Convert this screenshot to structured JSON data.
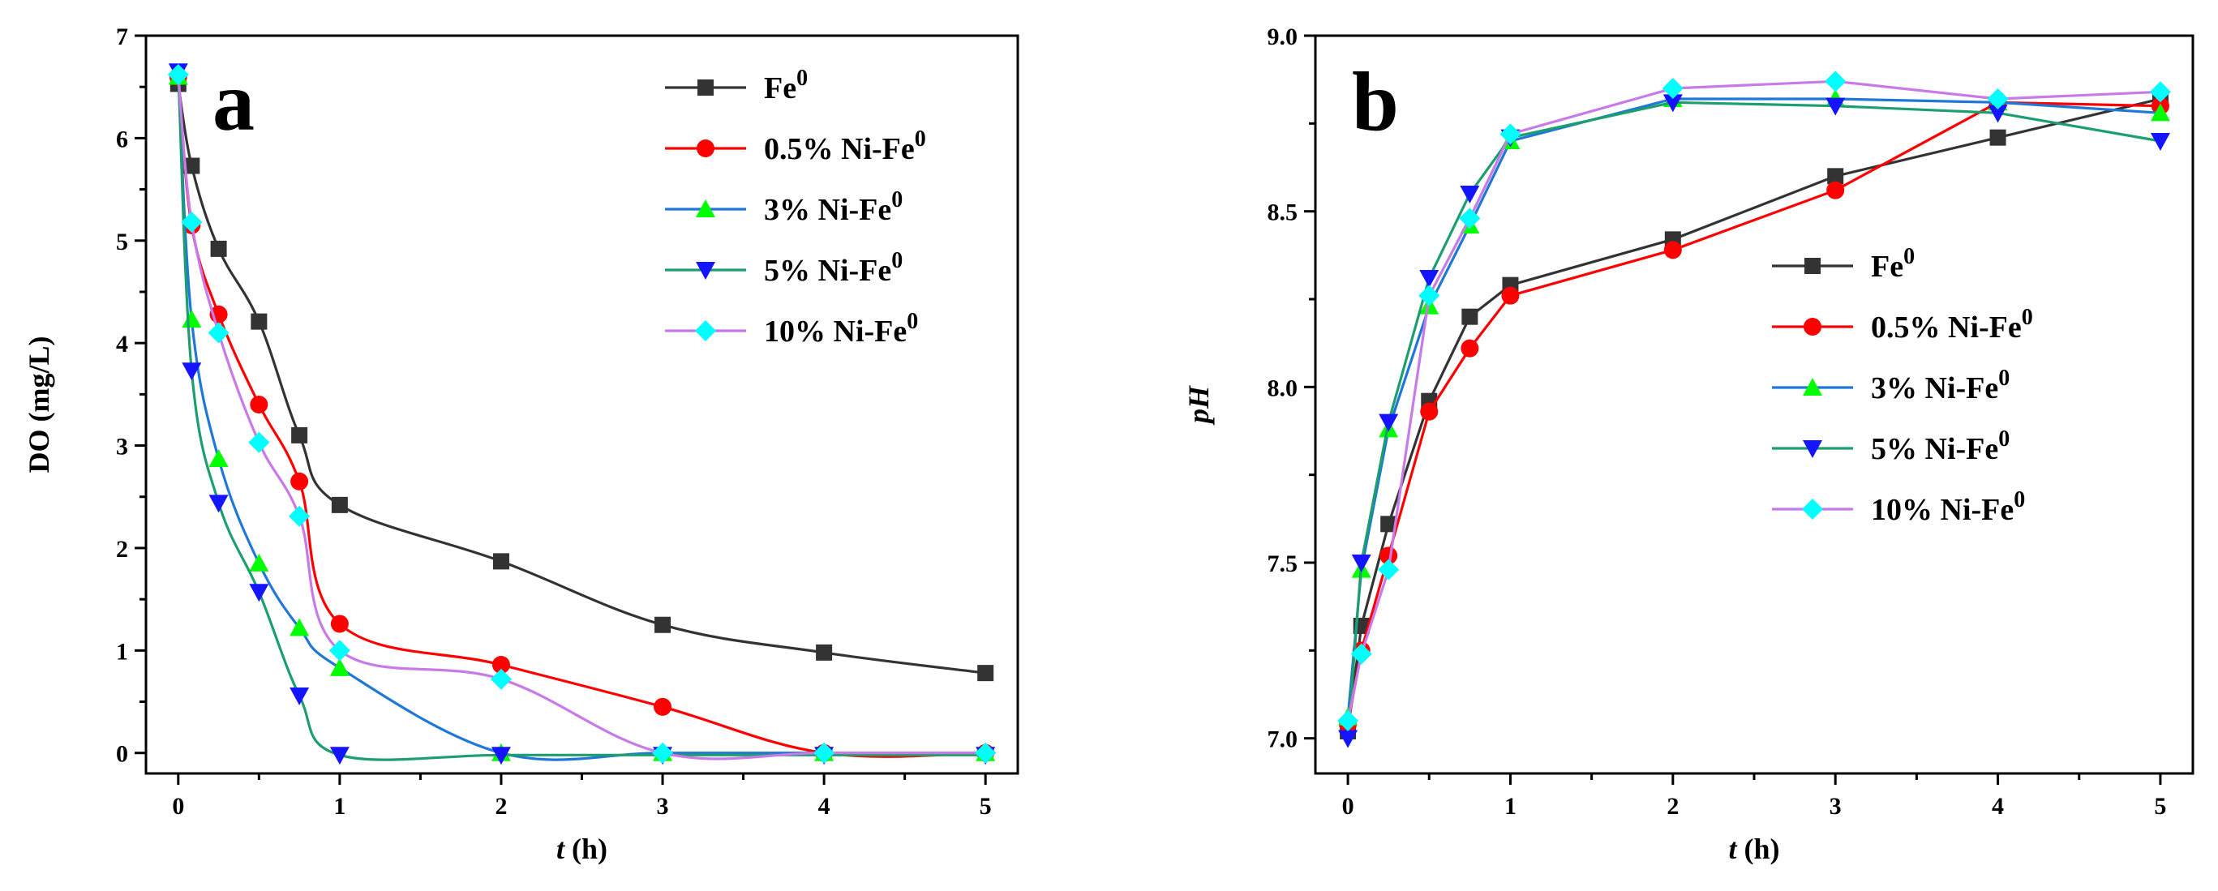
{
  "chart_data": [
    {
      "type": "line",
      "panel_label": "a",
      "xlabel_italic": "t",
      "xlabel_unit": " (h)",
      "ylabel": "DO (mg/L)",
      "xlim": [
        -0.2,
        5.2
      ],
      "ylim": [
        -0.2,
        7
      ],
      "xticks": [
        "0",
        "1",
        "2",
        "3",
        "4",
        "5"
      ],
      "yticks": [
        "0",
        "1",
        "2",
        "3",
        "4",
        "5",
        "6",
        "7"
      ],
      "legend_position": "top-right",
      "x": [
        0,
        0.083,
        0.25,
        0.5,
        0.75,
        1,
        2,
        3,
        4,
        5
      ],
      "series": [
        {
          "name": "Fe",
          "sup": "0",
          "color": "#333333",
          "marker": "square",
          "values": [
            6.53,
            5.73,
            4.92,
            4.21,
            3.1,
            2.42,
            1.87,
            1.25,
            0.98,
            0.78
          ]
        },
        {
          "name": "0.5% Ni-Fe",
          "sup": "0",
          "color": "#ff0000",
          "marker": "circle",
          "values": [
            6.6,
            5.15,
            4.28,
            3.4,
            2.65,
            1.26,
            0.86,
            0.45,
            0.0,
            0.0
          ]
        },
        {
          "name": "3% Ni-Fe",
          "sup": "0",
          "color": "#00ff00",
          "line_color": "#1f77d8",
          "marker": "triangle-up",
          "values": [
            6.6,
            4.23,
            2.87,
            1.85,
            1.22,
            0.83,
            0.0,
            0.0,
            0.0,
            0.0
          ]
        },
        {
          "name": "5% Ni-Fe",
          "sup": "0",
          "color": "#1414ff",
          "line_color": "#1c9e6e",
          "marker": "triangle-down",
          "values": [
            6.65,
            3.73,
            2.44,
            1.57,
            0.56,
            -0.02,
            -0.02,
            -0.02,
            -0.02,
            -0.02
          ]
        },
        {
          "name": "10% Ni-Fe",
          "sup": "0",
          "color": "#00ffff",
          "line_color": "#c77ae8",
          "marker": "diamond",
          "values": [
            6.62,
            5.18,
            4.1,
            3.03,
            2.31,
            1.0,
            0.72,
            0.0,
            0.0,
            0.0
          ]
        }
      ]
    },
    {
      "type": "line",
      "panel_label": "b",
      "xlabel_italic": "t",
      "xlabel_unit": " (h)",
      "ylabel": "pH",
      "xlim": [
        -0.2,
        5.2
      ],
      "ylim": [
        6.9,
        9.0
      ],
      "xticks": [
        "0",
        "1",
        "2",
        "3",
        "4",
        "5"
      ],
      "yticks": [
        "7.0",
        "7.5",
        "8.0",
        "8.5",
        "9.0"
      ],
      "legend_position": "center-right",
      "x": [
        0,
        0.083,
        0.25,
        0.5,
        0.75,
        1,
        2,
        3,
        4,
        5
      ],
      "series": [
        {
          "name": "Fe",
          "sup": "0",
          "color": "#333333",
          "marker": "square",
          "values": [
            7.02,
            7.32,
            7.61,
            7.96,
            8.2,
            8.29,
            8.42,
            8.6,
            8.71,
            8.82
          ]
        },
        {
          "name": "0.5% Ni-Fe",
          "sup": "0",
          "color": "#ff0000",
          "marker": "circle",
          "values": [
            7.04,
            7.25,
            7.52,
            7.93,
            8.11,
            8.26,
            8.39,
            8.56,
            8.81,
            8.8
          ]
        },
        {
          "name": "3% Ni-Fe",
          "sup": "0",
          "color": "#00ff00",
          "line_color": "#1f77d8",
          "marker": "triangle-up",
          "values": [
            7.06,
            7.48,
            7.88,
            8.23,
            8.46,
            8.7,
            8.82,
            8.82,
            8.81,
            8.78
          ]
        },
        {
          "name": "5% Ni-Fe",
          "sup": "0",
          "color": "#1414ff",
          "line_color": "#1c9e6e",
          "marker": "triangle-down",
          "values": [
            7.0,
            7.5,
            7.9,
            8.31,
            8.55,
            8.71,
            8.81,
            8.8,
            8.78,
            8.7
          ]
        },
        {
          "name": "10% Ni-Fe",
          "sup": "0",
          "color": "#00ffff",
          "line_color": "#c77ae8",
          "marker": "diamond",
          "values": [
            7.05,
            7.24,
            7.48,
            8.26,
            8.48,
            8.72,
            8.85,
            8.87,
            8.82,
            8.84
          ]
        }
      ]
    }
  ]
}
